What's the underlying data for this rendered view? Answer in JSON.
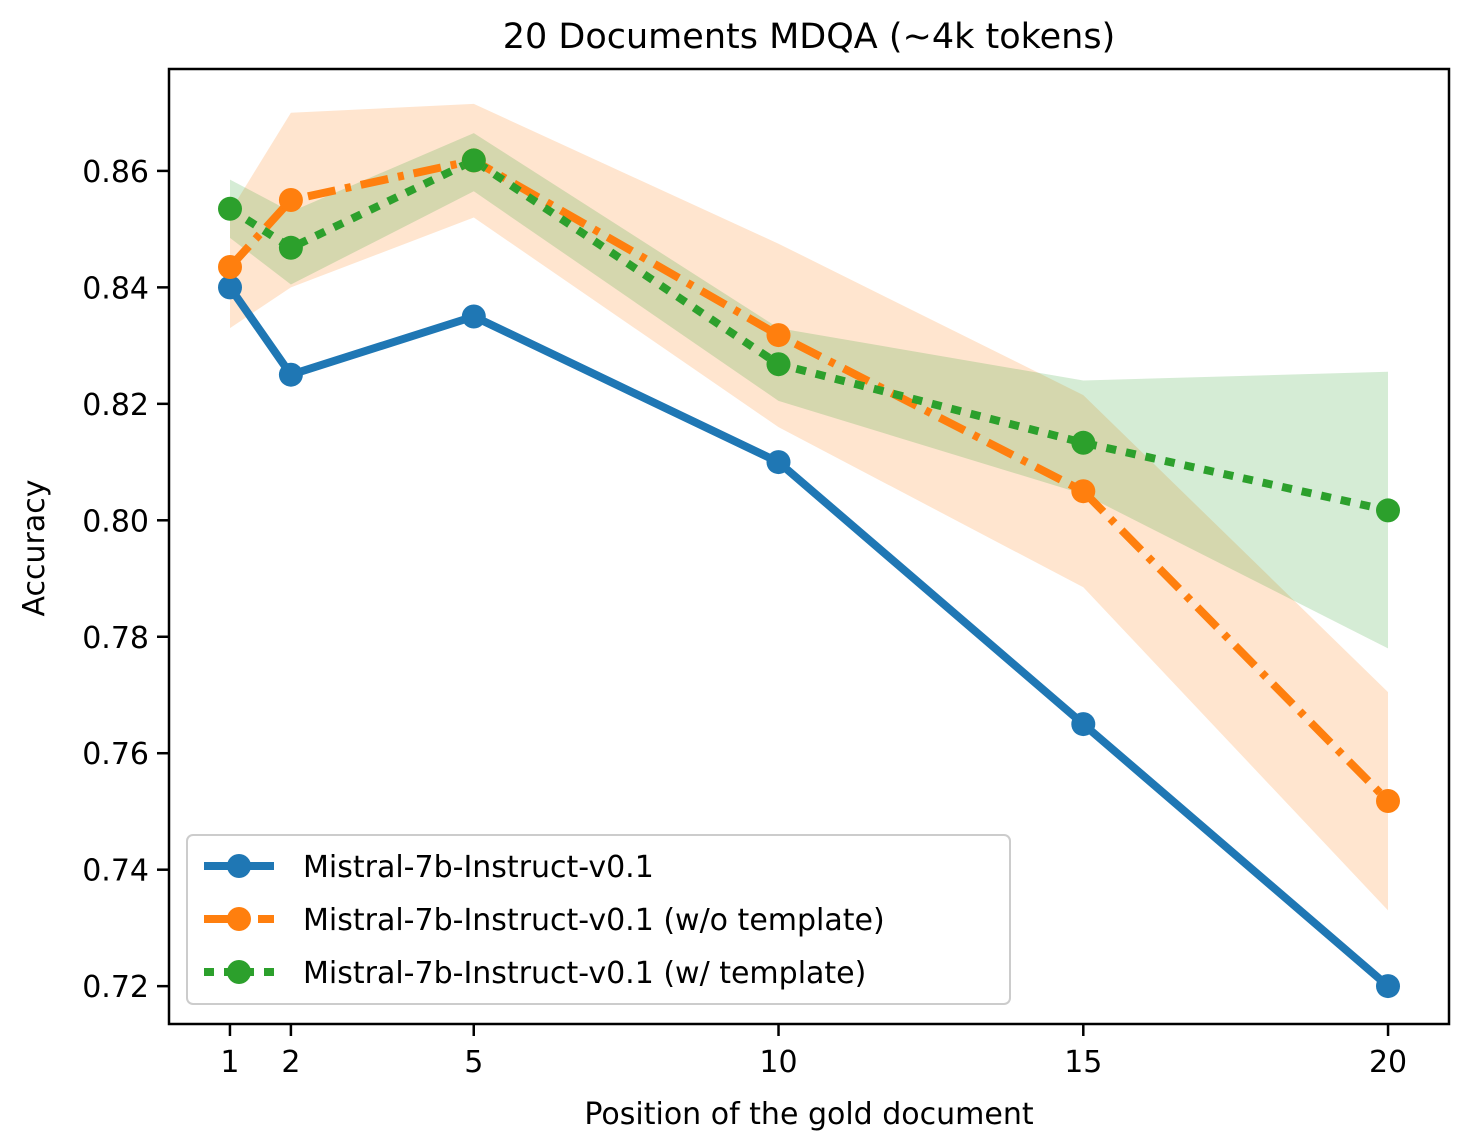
{
  "chart_data": {
    "type": "line",
    "title": "20 Documents MDQA (~4k tokens)",
    "xlabel": "Position of the gold document",
    "ylabel": "Accuracy",
    "xlim": [
      0.0,
      21.0
    ],
    "ylim": [
      0.7135,
      0.8775
    ],
    "xticks": [
      1,
      2,
      5,
      10,
      15,
      20
    ],
    "xtick_labels": [
      "1",
      "2",
      "5",
      "10",
      "15",
      "20"
    ],
    "yticks": [
      0.72,
      0.74,
      0.76,
      0.78,
      0.8,
      0.82,
      0.84,
      0.86
    ],
    "ytick_labels": [
      "0.72",
      "0.74",
      "0.76",
      "0.78",
      "0.80",
      "0.82",
      "0.84",
      "0.86"
    ],
    "grid": false,
    "legend_position": "lower-left",
    "x": [
      1,
      2,
      5,
      10,
      15,
      20
    ],
    "series": [
      {
        "name": "Mistral-7b-Instruct-v0.1",
        "color": "#1f77b4",
        "line_style": "solid",
        "values": [
          0.84,
          0.825,
          0.835,
          0.81,
          0.765,
          0.72
        ]
      },
      {
        "name": "Mistral-7b-Instruct-v0.1 (w/o template)",
        "color": "#ff7f0e",
        "line_style": "dash-dot",
        "values": [
          0.8435,
          0.855,
          0.8618,
          0.8318,
          0.805,
          0.7518
        ],
        "band_lower": [
          0.833,
          0.84,
          0.852,
          0.816,
          0.7885,
          0.733
        ],
        "band_upper": [
          0.853,
          0.87,
          0.8715,
          0.8475,
          0.8215,
          0.7705
        ]
      },
      {
        "name": "Mistral-7b-Instruct-v0.1 (w/ template)",
        "color": "#2ca02c",
        "line_style": "dotted",
        "values": [
          0.8535,
          0.8468,
          0.8618,
          0.8268,
          0.8133,
          0.8017
        ],
        "band_lower": [
          0.8485,
          0.8405,
          0.8565,
          0.8205,
          0.8045,
          0.778
        ],
        "band_upper": [
          0.8585,
          0.853,
          0.8665,
          0.833,
          0.824,
          0.8255
        ]
      }
    ]
  }
}
